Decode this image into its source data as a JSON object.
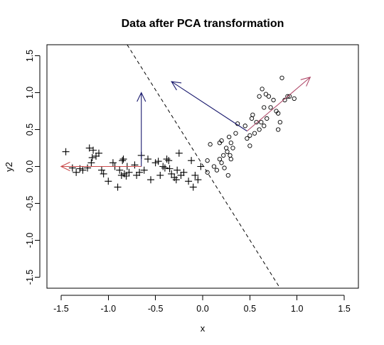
{
  "chart_data": {
    "type": "scatter",
    "title": "Data after PCA transformation",
    "xlabel": "x",
    "ylabel": "y2",
    "xlim": [
      -1.65,
      1.65
    ],
    "ylim": [
      -1.65,
      1.65
    ],
    "xticks": [
      -1.5,
      -1.0,
      -0.5,
      0.0,
      0.5,
      1.0,
      1.5
    ],
    "yticks": [
      -1.5,
      -1.0,
      -0.5,
      0.0,
      0.5,
      1.0,
      1.5
    ],
    "xtick_labels": [
      "-1.5",
      "-1.0",
      "-0.5",
      "0.0",
      "0.5",
      "1.0",
      "1.5"
    ],
    "ytick_labels": [
      "-1.5",
      "-1.0",
      "-0.5",
      "0.0",
      "0.5",
      "1.0",
      "1.5"
    ],
    "grid": false,
    "series": [
      {
        "marker": "plus",
        "color": "#000000",
        "points": [
          [
            -1.45,
            0.2
          ],
          [
            -1.38,
            -0.02
          ],
          [
            -1.34,
            -0.08
          ],
          [
            -1.3,
            -0.03
          ],
          [
            -1.27,
            -0.05
          ],
          [
            -1.22,
            -0.02
          ],
          [
            -1.2,
            0.25
          ],
          [
            -1.18,
            0.05
          ],
          [
            -1.16,
            0.22
          ],
          [
            -1.17,
            0.12
          ],
          [
            -1.13,
            0.14
          ],
          [
            -1.1,
            0.18
          ],
          [
            -1.07,
            -0.05
          ],
          [
            -1.05,
            -0.1
          ],
          [
            -1.0,
            -0.2
          ],
          [
            -0.95,
            0.05
          ],
          [
            -0.93,
            0.0
          ],
          [
            -0.9,
            -0.28
          ],
          [
            -0.88,
            -0.05
          ],
          [
            -0.86,
            -0.12
          ],
          [
            -0.85,
            0.08
          ],
          [
            -0.84,
            0.1
          ],
          [
            -0.83,
            -0.1
          ],
          [
            -0.81,
            -0.13
          ],
          [
            -0.8,
            0.0
          ],
          [
            -0.78,
            -0.08
          ],
          [
            -0.72,
            0.02
          ],
          [
            -0.7,
            -0.12
          ],
          [
            -0.67,
            -0.08
          ],
          [
            -0.65,
            0.15
          ],
          [
            -0.62,
            -0.05
          ],
          [
            -0.58,
            0.1
          ],
          [
            -0.55,
            -0.18
          ],
          [
            -0.5,
            0.05
          ],
          [
            -0.47,
            0.07
          ],
          [
            -0.45,
            -0.12
          ],
          [
            -0.42,
            0.0
          ],
          [
            -0.4,
            -0.02
          ],
          [
            -0.38,
            0.1
          ],
          [
            -0.36,
            0.08
          ],
          [
            -0.35,
            -0.03
          ],
          [
            -0.33,
            -0.1
          ],
          [
            -0.3,
            -0.15
          ],
          [
            -0.28,
            -0.18
          ],
          [
            -0.27,
            -0.05
          ],
          [
            -0.25,
            0.18
          ],
          [
            -0.23,
            -0.12
          ],
          [
            -0.2,
            -0.08
          ],
          [
            -0.15,
            -0.2
          ],
          [
            -0.12,
            0.08
          ],
          [
            -0.1,
            -0.28
          ],
          [
            -0.08,
            -0.12
          ],
          [
            -0.05,
            -0.18
          ],
          [
            -0.02,
            0.0
          ]
        ]
      },
      {
        "marker": "circle",
        "color": "#000000",
        "points": [
          [
            0.05,
            0.08
          ],
          [
            0.05,
            -0.08
          ],
          [
            0.08,
            0.3
          ],
          [
            0.12,
            0.0
          ],
          [
            0.15,
            -0.05
          ],
          [
            0.18,
            0.1
          ],
          [
            0.18,
            0.32
          ],
          [
            0.2,
            0.35
          ],
          [
            0.2,
            0.05
          ],
          [
            0.22,
            0.15
          ],
          [
            0.23,
            -0.02
          ],
          [
            0.25,
            0.25
          ],
          [
            0.26,
            0.2
          ],
          [
            0.27,
            -0.12
          ],
          [
            0.28,
            0.4
          ],
          [
            0.29,
            0.15
          ],
          [
            0.3,
            0.32
          ],
          [
            0.3,
            0.1
          ],
          [
            0.32,
            0.25
          ],
          [
            0.35,
            0.45
          ],
          [
            0.37,
            0.58
          ],
          [
            0.45,
            0.55
          ],
          [
            0.47,
            0.38
          ],
          [
            0.5,
            0.28
          ],
          [
            0.5,
            0.42
          ],
          [
            0.52,
            0.65
          ],
          [
            0.53,
            0.7
          ],
          [
            0.55,
            0.45
          ],
          [
            0.57,
            0.6
          ],
          [
            0.6,
            0.5
          ],
          [
            0.6,
            0.95
          ],
          [
            0.62,
            0.6
          ],
          [
            0.63,
            1.05
          ],
          [
            0.65,
            0.8
          ],
          [
            0.65,
            0.55
          ],
          [
            0.67,
            0.98
          ],
          [
            0.68,
            0.65
          ],
          [
            0.7,
            0.95
          ],
          [
            0.72,
            0.8
          ],
          [
            0.75,
            0.9
          ],
          [
            0.78,
            0.75
          ],
          [
            0.8,
            0.5
          ],
          [
            0.8,
            0.72
          ],
          [
            0.82,
            0.6
          ],
          [
            0.84,
            1.2
          ],
          [
            0.87,
            0.9
          ],
          [
            0.9,
            0.95
          ],
          [
            0.92,
            0.95
          ],
          [
            0.97,
            0.92
          ]
        ]
      }
    ],
    "lines": [
      {
        "style": "dashed",
        "color": "#000000",
        "from": [
          -0.8,
          1.65
        ],
        "to": [
          0.82,
          -1.65
        ]
      }
    ],
    "arrows": [
      {
        "color": "#c94a4a",
        "from": [
          -0.65,
          0.0
        ],
        "to": [
          -1.5,
          0.0
        ]
      },
      {
        "color": "#1a1a6e",
        "from": [
          -0.65,
          0.0
        ],
        "to": [
          -0.65,
          1.0
        ]
      },
      {
        "color": "#b04a6a",
        "from": [
          0.47,
          0.48
        ],
        "to": [
          1.14,
          1.21
        ]
      },
      {
        "color": "#1a1a6e",
        "from": [
          0.47,
          0.48
        ],
        "to": [
          -0.33,
          1.15
        ]
      }
    ]
  }
}
